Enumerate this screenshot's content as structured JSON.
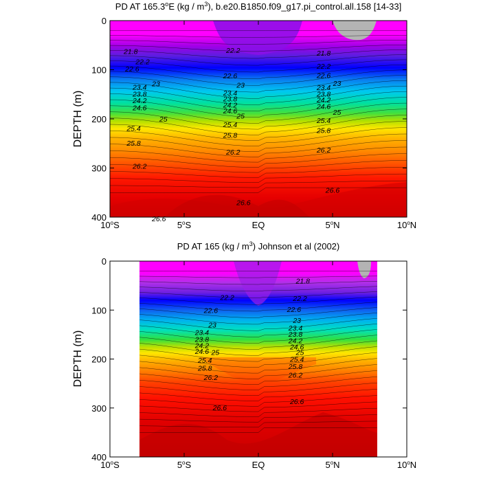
{
  "chart_data": [
    {
      "type": "contour",
      "title_prefix": "PD AT 165.3",
      "title_degree": "o",
      "title_unit_pre": "E (kg / m",
      "title_unit_exp": "3",
      "title_suffix": "), b.e20.B1850.f09_g17.pi_control.all.158 [14-33]",
      "ylabel": "DEPTH (m)",
      "xlim": [
        -10,
        10
      ],
      "ylim": [
        0,
        400
      ],
      "x_range": [
        -10,
        10
      ],
      "xticks": [
        {
          "v": -10,
          "num": "10",
          "sup": "o",
          "hem": "S"
        },
        {
          "v": -5,
          "num": "5",
          "sup": "o",
          "hem": "S"
        },
        {
          "v": 0,
          "num": "EQ",
          "sup": "",
          "hem": ""
        },
        {
          "v": 5,
          "num": "5",
          "sup": "o",
          "hem": "N"
        },
        {
          "v": 10,
          "num": "10",
          "sup": "o",
          "hem": "N"
        }
      ],
      "yticks": [
        "0",
        "100",
        "200",
        "300",
        "400"
      ],
      "contour_labels": [
        {
          "x": -8.6,
          "y": 62,
          "text": "21.8"
        },
        {
          "x": -7.8,
          "y": 83,
          "text": "22.2"
        },
        {
          "x": -8.5,
          "y": 98,
          "text": "22.6"
        },
        {
          "x": -8.0,
          "y": 135,
          "text": "23.4"
        },
        {
          "x": -6.9,
          "y": 128,
          "text": "23"
        },
        {
          "x": -8.0,
          "y": 149,
          "text": "23.8"
        },
        {
          "x": -8.0,
          "y": 162,
          "text": "24.2"
        },
        {
          "x": -8.0,
          "y": 177,
          "text": "24.6"
        },
        {
          "x": -6.4,
          "y": 200,
          "text": "25"
        },
        {
          "x": -8.4,
          "y": 219,
          "text": "25.4"
        },
        {
          "x": -8.4,
          "y": 249,
          "text": "25.8"
        },
        {
          "x": -8.0,
          "y": 296,
          "text": "26.2"
        },
        {
          "x": -6.7,
          "y": 403,
          "text": "26.6"
        },
        {
          "x": -1.7,
          "y": 60,
          "text": "22.2"
        },
        {
          "x": -1.9,
          "y": 112,
          "text": "22.6"
        },
        {
          "x": -1.2,
          "y": 131,
          "text": "23"
        },
        {
          "x": -1.9,
          "y": 147,
          "text": "23.4"
        },
        {
          "x": -1.9,
          "y": 159,
          "text": "23.8"
        },
        {
          "x": -1.9,
          "y": 171,
          "text": "24.2"
        },
        {
          "x": -1.9,
          "y": 183,
          "text": "24.6"
        },
        {
          "x": -1.2,
          "y": 194,
          "text": "25"
        },
        {
          "x": -1.9,
          "y": 211,
          "text": "25.4"
        },
        {
          "x": -1.9,
          "y": 233,
          "text": "25.8"
        },
        {
          "x": -1.7,
          "y": 267,
          "text": "26.2"
        },
        {
          "x": -1.0,
          "y": 370,
          "text": "26.6"
        },
        {
          "x": 4.4,
          "y": 66,
          "text": "21.8"
        },
        {
          "x": 4.4,
          "y": 92,
          "text": "22.2"
        },
        {
          "x": 4.4,
          "y": 111,
          "text": "22.6"
        },
        {
          "x": 5.3,
          "y": 127,
          "text": "23"
        },
        {
          "x": 4.4,
          "y": 136,
          "text": "23.4"
        },
        {
          "x": 4.4,
          "y": 149,
          "text": "23.8"
        },
        {
          "x": 4.4,
          "y": 161,
          "text": "24.2"
        },
        {
          "x": 4.4,
          "y": 174,
          "text": "24.6"
        },
        {
          "x": 5.3,
          "y": 186,
          "text": "25"
        },
        {
          "x": 4.4,
          "y": 203,
          "text": "25.4"
        },
        {
          "x": 4.4,
          "y": 223,
          "text": "25.8"
        },
        {
          "x": 4.4,
          "y": 263,
          "text": "26.2"
        },
        {
          "x": 5.0,
          "y": 345,
          "text": "26.6"
        }
      ]
    },
    {
      "type": "contour",
      "title_prefix": "PD AT 165 (kg / m",
      "title_degree": "",
      "title_unit_pre": "",
      "title_unit_exp": "3",
      "title_suffix": ") Johnson et al (2002)",
      "ylabel": "DEPTH (m)",
      "xlim": [
        -10,
        10
      ],
      "ylim": [
        0,
        400
      ],
      "x_range": [
        -8,
        8
      ],
      "xticks": [
        {
          "v": -10,
          "num": "10",
          "sup": "o",
          "hem": "S"
        },
        {
          "v": -5,
          "num": "5",
          "sup": "o",
          "hem": "S"
        },
        {
          "v": 0,
          "num": "EQ",
          "sup": "",
          "hem": ""
        },
        {
          "v": 5,
          "num": "5",
          "sup": "o",
          "hem": "N"
        },
        {
          "v": 10,
          "num": "10",
          "sup": "o",
          "hem": "N"
        }
      ],
      "yticks": [
        "0",
        "100",
        "200",
        "300",
        "400"
      ],
      "contour_labels": [
        {
          "x": 3.0,
          "y": 40,
          "text": "21.8"
        },
        {
          "x": -2.1,
          "y": 74,
          "text": "22.2"
        },
        {
          "x": 2.8,
          "y": 76,
          "text": "22.2"
        },
        {
          "x": -3.2,
          "y": 100,
          "text": "22.6"
        },
        {
          "x": 2.4,
          "y": 98,
          "text": "22.6"
        },
        {
          "x": -3.1,
          "y": 130,
          "text": "23"
        },
        {
          "x": 2.6,
          "y": 121,
          "text": "23"
        },
        {
          "x": -3.8,
          "y": 145,
          "text": "23.4"
        },
        {
          "x": 2.5,
          "y": 136,
          "text": "23.4"
        },
        {
          "x": -3.8,
          "y": 159,
          "text": "23.8"
        },
        {
          "x": 2.5,
          "y": 149,
          "text": "23.8"
        },
        {
          "x": -3.8,
          "y": 172,
          "text": "24.2"
        },
        {
          "x": 2.5,
          "y": 162,
          "text": "24.2"
        },
        {
          "x": -3.8,
          "y": 184,
          "text": "24.6"
        },
        {
          "x": 2.6,
          "y": 175,
          "text": "24.6"
        },
        {
          "x": -2.9,
          "y": 186,
          "text": "25"
        },
        {
          "x": 2.8,
          "y": 186,
          "text": "25"
        },
        {
          "x": -3.6,
          "y": 202,
          "text": "25.4"
        },
        {
          "x": 2.6,
          "y": 200,
          "text": "25.4"
        },
        {
          "x": -3.6,
          "y": 218,
          "text": "25.8"
        },
        {
          "x": 2.5,
          "y": 215,
          "text": "25.8"
        },
        {
          "x": -3.2,
          "y": 237,
          "text": "26.2"
        },
        {
          "x": 2.5,
          "y": 232,
          "text": "26.2"
        },
        {
          "x": -2.6,
          "y": 299,
          "text": "26.6"
        },
        {
          "x": 2.6,
          "y": 286,
          "text": "26.6"
        }
      ]
    }
  ]
}
